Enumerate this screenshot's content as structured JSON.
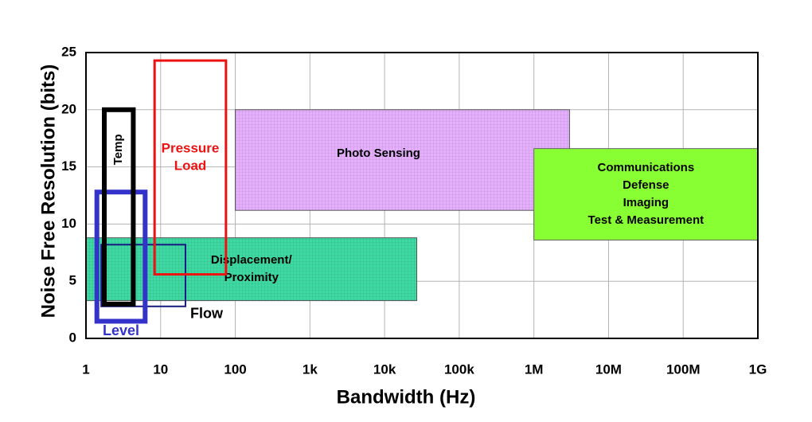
{
  "chart_data": {
    "type": "region",
    "x_label": "Bandwidth (Hz)",
    "y_label": "Noise Free Resolution (bits)",
    "x_scale": "log",
    "xlim": [
      1,
      1000000000
    ],
    "ylim": [
      0,
      25
    ],
    "xticks": [
      1,
      10,
      100,
      {
        "value": 1000,
        "label": "1k"
      },
      {
        "value": 10000,
        "label": "10k"
      },
      {
        "value": 100000,
        "label": "100k"
      },
      {
        "value": 1000000,
        "label": "1M"
      },
      {
        "value": 10000000,
        "label": "10M"
      },
      {
        "value": 100000000,
        "label": "100M"
      },
      {
        "value": 1000000000,
        "label": "1G"
      }
    ],
    "yticks": [
      0,
      5,
      10,
      15,
      20,
      25
    ],
    "grid": true,
    "series": [
      {
        "label": [
          "Displacement/",
          "Proximity"
        ],
        "x": [
          1,
          27000
        ],
        "y": [
          3.3,
          8.8
        ],
        "color": "#3fd9a4",
        "stroke": "#555555",
        "hatched": true,
        "text_color": "#000000"
      },
      {
        "label": [
          "Photo Sensing"
        ],
        "x": [
          100,
          3000000
        ],
        "y": [
          11.2,
          20
        ],
        "color": "#e6b0ff",
        "stroke": "#555555",
        "hatched": true,
        "text_color": "#000000"
      },
      {
        "label": [
          "Communications",
          "Defense",
          "Imaging",
          "Test & Measurement"
        ],
        "x": [
          1000000,
          1000000000
        ],
        "y": [
          8.6,
          16.6
        ],
        "color": "#88ff33",
        "stroke": "#666666",
        "hatched": false,
        "text_color": "#000000"
      },
      {
        "label": [
          "Flow"
        ],
        "x": [
          1.6,
          21.5
        ],
        "y": [
          2.8,
          8.2
        ],
        "color": "none",
        "stroke": "#1a1a80",
        "hatched": false,
        "text_color": "#000000"
      },
      {
        "label": [
          "Pressure",
          "Load"
        ],
        "x": [
          8.3,
          75
        ],
        "y": [
          5.6,
          24.3
        ],
        "color": "none",
        "stroke": "#ee1111",
        "hatched": false,
        "text_color": "#ee1111"
      },
      {
        "label": [
          "Level"
        ],
        "x": [
          1.4,
          6.2
        ],
        "y": [
          1.5,
          12.8
        ],
        "color": "none",
        "stroke": "#3333cc",
        "hatched": false,
        "text_color": "#3333cc"
      },
      {
        "label": [
          "Temp"
        ],
        "x": [
          1.76,
          4.3
        ],
        "y": [
          3,
          20
        ],
        "color": "none",
        "stroke": "#000000",
        "hatched": false,
        "text_color": "#000000",
        "label_rotated": true
      }
    ]
  }
}
